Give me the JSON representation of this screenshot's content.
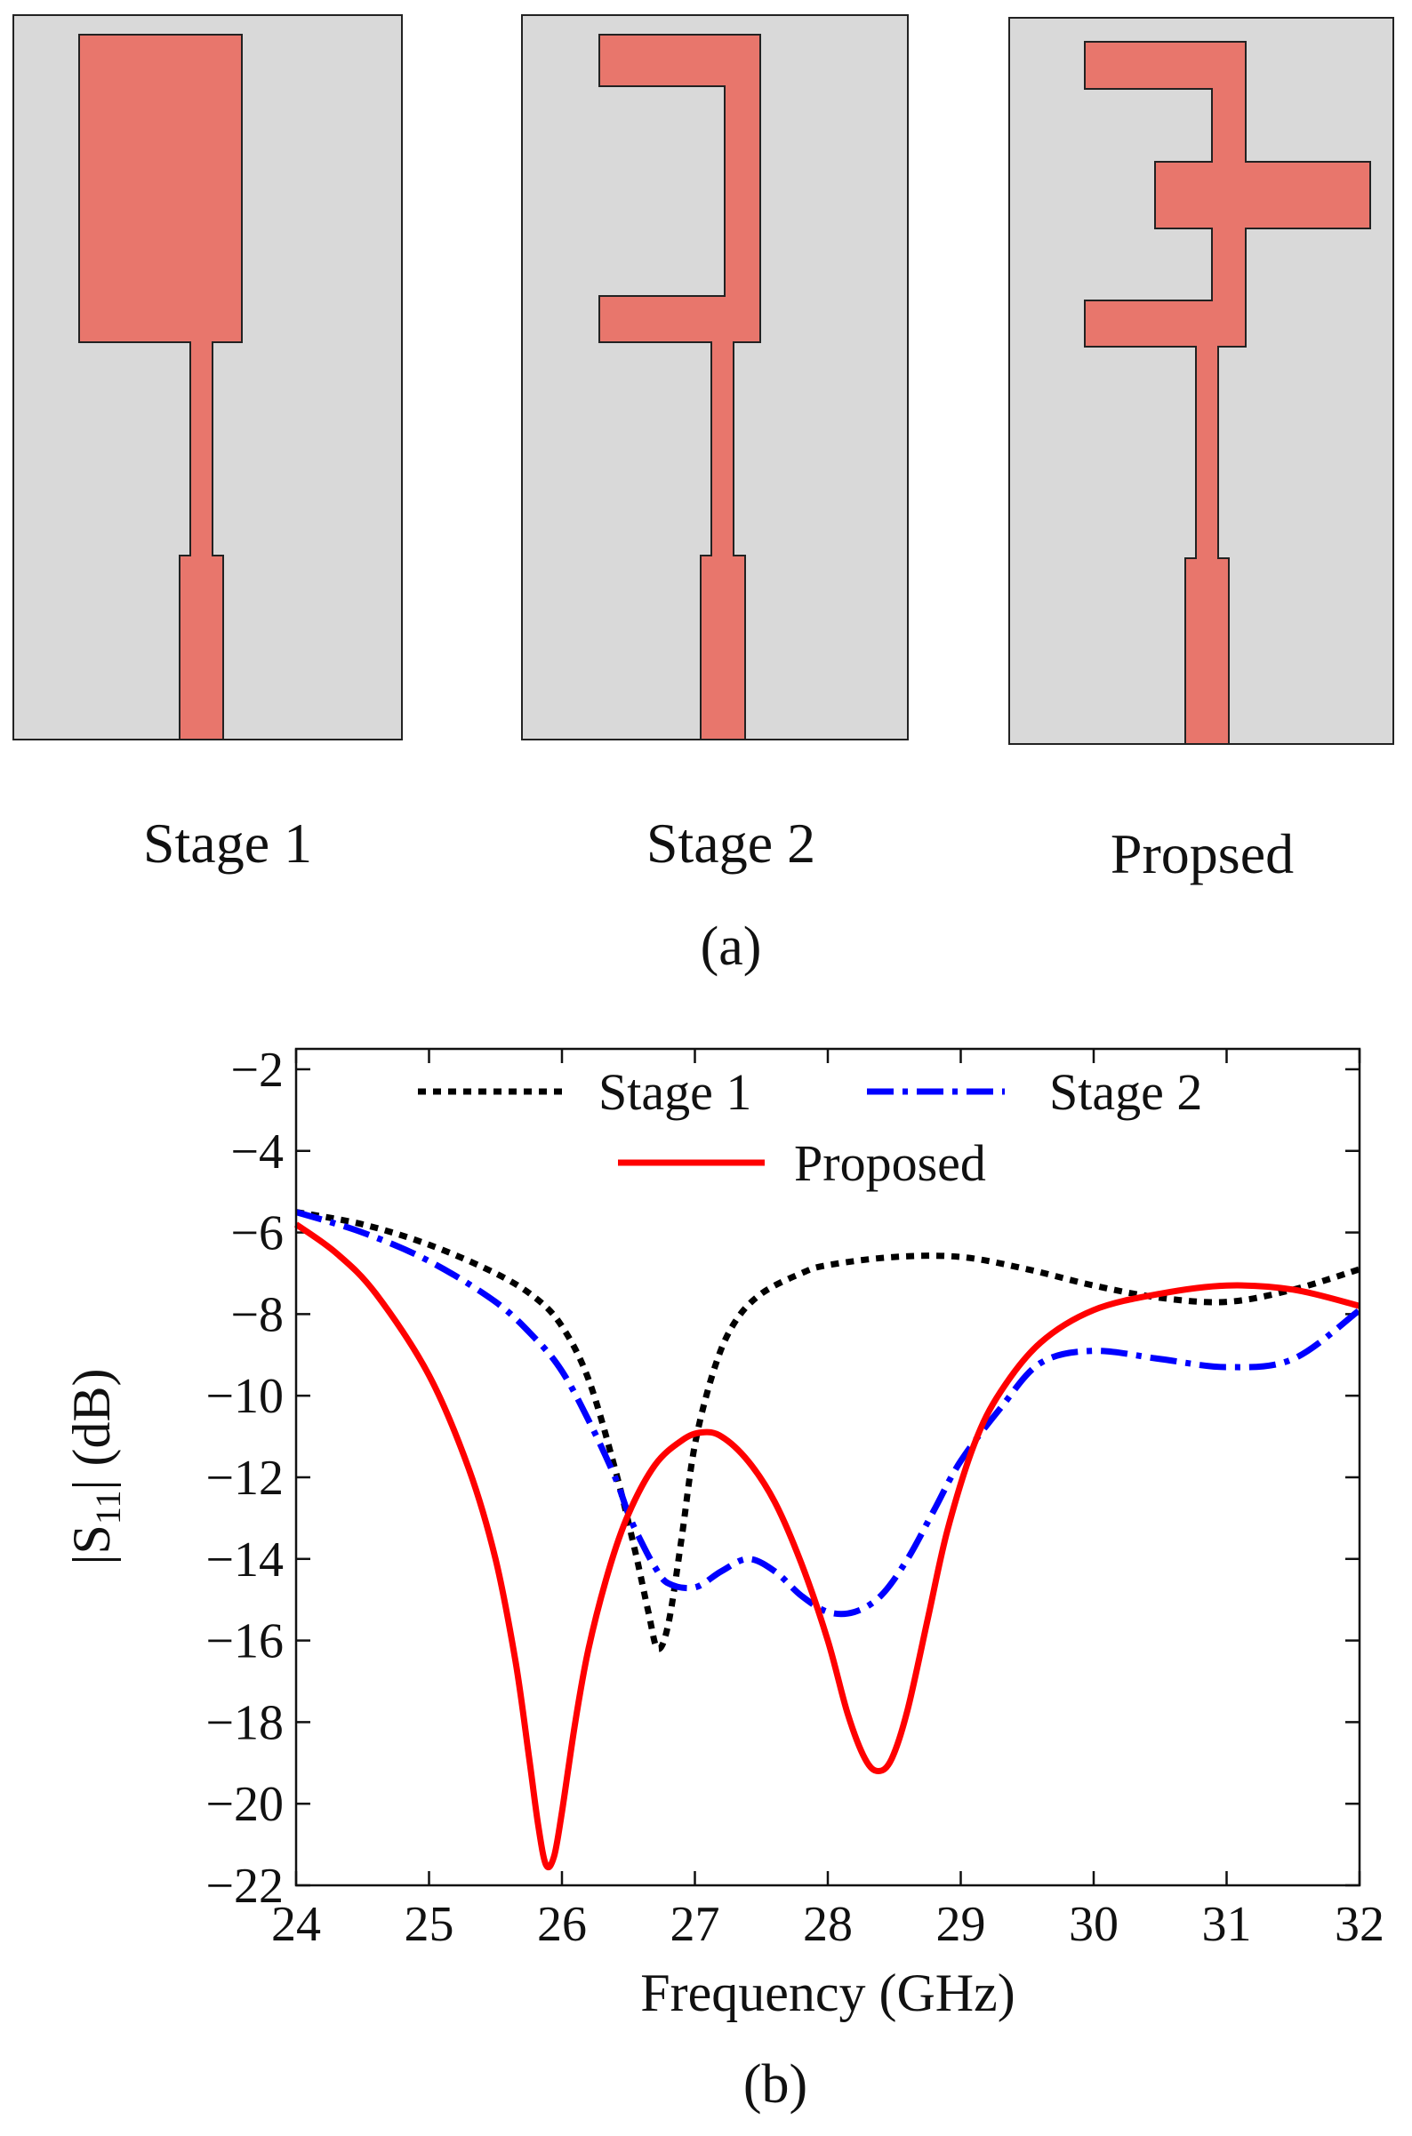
{
  "panel_a": {
    "label": "(a)",
    "stages": [
      "Stage 1",
      "Stage 2",
      "Propsed"
    ]
  },
  "panel_b": {
    "label": "(b)"
  },
  "colors": {
    "substrate": "#d9d9d9",
    "patch": "#e8766c",
    "stage1": "#000000",
    "stage2": "#0000ff",
    "proposed": "#ff0000"
  },
  "chart_data": {
    "type": "line",
    "xlabel": "Frequency (GHz)",
    "ylabel": "|S11| (dB)",
    "ylabel_main": "|S",
    "ylabel_sub": "11",
    "ylabel_tail": "| (dB)",
    "xlim": [
      24,
      32
    ],
    "ylim": [
      -22,
      -1.5
    ],
    "xticks": [
      24,
      25,
      26,
      27,
      28,
      29,
      30,
      31,
      32
    ],
    "yticks": [
      -22,
      -20,
      -18,
      -16,
      -14,
      -12,
      -10,
      -8,
      -6,
      -4,
      -2
    ],
    "xtick_labels": [
      "24",
      "25",
      "26",
      "27",
      "28",
      "29",
      "30",
      "31",
      "32"
    ],
    "ytick_labels": [
      "−22",
      "−20",
      "−18",
      "−16",
      "−14",
      "−12",
      "−10",
      "−8",
      "−6",
      "−4",
      "−2"
    ],
    "legend": [
      "Stage 1",
      "Stage 2",
      "Proposed"
    ],
    "series": [
      {
        "name": "Stage 1",
        "style": "dotted",
        "color": "#000000",
        "x": [
          24,
          24.5,
          25,
          25.5,
          25.8,
          26,
          26.2,
          26.4,
          26.55,
          26.65,
          26.72,
          26.8,
          26.9,
          27,
          27.15,
          27.3,
          27.5,
          27.8,
          28,
          28.5,
          29,
          29.5,
          30,
          30.5,
          31,
          31.5,
          32
        ],
        "values": [
          -5.5,
          -5.8,
          -6.3,
          -7.0,
          -7.6,
          -8.3,
          -9.6,
          -11.8,
          -13.8,
          -15.3,
          -16.2,
          -15.6,
          -13.5,
          -11.2,
          -9.3,
          -8.2,
          -7.5,
          -7.0,
          -6.8,
          -6.6,
          -6.6,
          -6.9,
          -7.3,
          -7.6,
          -7.7,
          -7.4,
          -6.9
        ]
      },
      {
        "name": "Stage 2",
        "style": "dashdot",
        "color": "#0000ff",
        "x": [
          24,
          24.5,
          25,
          25.5,
          25.8,
          26,
          26.2,
          26.4,
          26.5,
          26.6,
          26.7,
          26.8,
          27,
          27.2,
          27.4,
          27.6,
          27.8,
          28,
          28.2,
          28.4,
          28.6,
          28.8,
          29,
          29.3,
          29.6,
          30,
          30.5,
          31,
          31.5,
          32
        ],
        "values": [
          -5.5,
          -6.0,
          -6.7,
          -7.7,
          -8.6,
          -9.4,
          -10.6,
          -12.0,
          -12.9,
          -13.6,
          -14.2,
          -14.6,
          -14.7,
          -14.3,
          -14.0,
          -14.3,
          -14.9,
          -15.3,
          -15.3,
          -14.9,
          -14.0,
          -12.8,
          -11.6,
          -10.3,
          -9.2,
          -8.9,
          -9.1,
          -9.3,
          -9.1,
          -7.9
        ]
      },
      {
        "name": "Proposed",
        "style": "solid",
        "color": "#ff0000",
        "x": [
          24,
          24.3,
          24.6,
          25,
          25.3,
          25.5,
          25.65,
          25.75,
          25.82,
          25.88,
          25.94,
          26.0,
          26.1,
          26.2,
          26.35,
          26.5,
          26.7,
          26.9,
          27.05,
          27.2,
          27.4,
          27.6,
          27.8,
          28.0,
          28.15,
          28.28,
          28.38,
          28.48,
          28.6,
          28.75,
          28.9,
          29.1,
          29.3,
          29.6,
          30,
          30.5,
          31,
          31.5,
          32
        ],
        "values": [
          -5.8,
          -6.5,
          -7.5,
          -9.5,
          -11.8,
          -14.0,
          -16.5,
          -18.8,
          -20.5,
          -21.5,
          -21.3,
          -20.2,
          -18.0,
          -16.2,
          -14.3,
          -12.9,
          -11.7,
          -11.1,
          -10.9,
          -11.0,
          -11.6,
          -12.6,
          -14.1,
          -16.0,
          -17.8,
          -18.9,
          -19.2,
          -18.9,
          -17.7,
          -15.5,
          -13.3,
          -11.2,
          -9.9,
          -8.7,
          -7.9,
          -7.5,
          -7.3,
          -7.4,
          -7.8
        ]
      }
    ]
  }
}
